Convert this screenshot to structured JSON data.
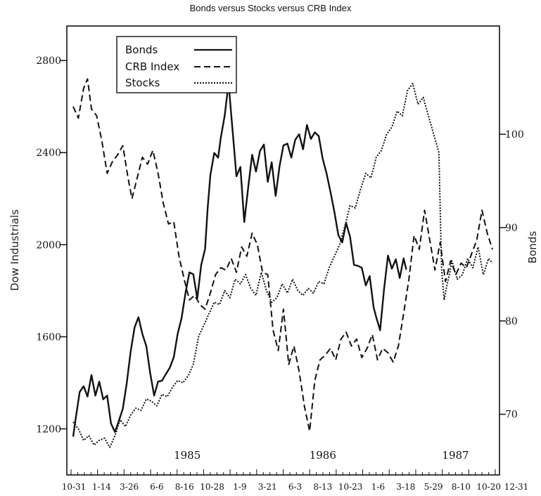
{
  "chart_data": {
    "type": "line",
    "title": "Bonds versus Stocks versus CRB Index",
    "y_left_label": "Dow Industrials",
    "y_right_label": "Bonds",
    "y_left_ticks": [
      1200,
      1600,
      2000,
      2400,
      2800
    ],
    "y_right_ticks": [
      70,
      80,
      90,
      100
    ],
    "y_left_range": [
      1000,
      2950
    ],
    "y_right_range": [
      63.5,
      111.6
    ],
    "x_ticks": [
      "10-31",
      "1-14",
      "3-26",
      "6-6",
      "8-16",
      "10-28",
      "1-9",
      "3-21",
      "6-3",
      "8-13",
      "10-23",
      "1-6",
      "3-18",
      "5-29",
      "8-10",
      "10-20",
      "12-31"
    ],
    "year_labels": [
      {
        "label": "1985",
        "x_index": 4.1
      },
      {
        "label": "1986",
        "x_index": 9.0
      },
      {
        "label": "1987",
        "x_index": 13.8
      }
    ],
    "legend": {
      "position": "top-left"
    },
    "series": [
      {
        "name": "Bonds",
        "style": "solid",
        "axis": "right",
        "points": [
          [
            0,
            67.6
          ],
          [
            0.2,
            69.6
          ],
          [
            0.5,
            72.4
          ],
          [
            0.8,
            73.0
          ],
          [
            1.1,
            71.9
          ],
          [
            1.4,
            74.2
          ],
          [
            1.7,
            72.0
          ],
          [
            2.0,
            73.5
          ],
          [
            2.3,
            71.6
          ],
          [
            2.6,
            72.0
          ],
          [
            2.9,
            69.0
          ],
          [
            3.2,
            68.1
          ],
          [
            3.5,
            69.3
          ],
          [
            3.8,
            70.6
          ],
          [
            4.1,
            73.3
          ],
          [
            4.4,
            76.7
          ],
          [
            4.7,
            79.3
          ],
          [
            5.0,
            80.4
          ],
          [
            5.3,
            78.6
          ],
          [
            5.6,
            77.3
          ],
          [
            5.9,
            74.4
          ],
          [
            6.2,
            72.0
          ],
          [
            6.5,
            73.5
          ],
          [
            6.8,
            73.6
          ],
          [
            7.1,
            74.3
          ],
          [
            7.4,
            75.0
          ],
          [
            7.7,
            76.1
          ],
          [
            8.0,
            78.6
          ],
          [
            8.3,
            80.3
          ],
          [
            8.6,
            83.0
          ],
          [
            8.9,
            85.2
          ],
          [
            9.2,
            85.0
          ],
          [
            9.5,
            82.4
          ],
          [
            9.8,
            86.0
          ],
          [
            10.1,
            87.7
          ],
          [
            10.3,
            92.1
          ],
          [
            10.5,
            95.6
          ],
          [
            10.8,
            98.0
          ],
          [
            11.1,
            97.5
          ],
          [
            11.3,
            99.6
          ],
          [
            11.6,
            102.0
          ],
          [
            11.9,
            105.5
          ],
          [
            12.2,
            100.5
          ],
          [
            12.5,
            95.5
          ],
          [
            12.8,
            96.5
          ],
          [
            13.1,
            90.6
          ],
          [
            13.4,
            94.3
          ],
          [
            13.7,
            97.8
          ],
          [
            14.0,
            96.0
          ],
          [
            14.3,
            98.2
          ],
          [
            14.6,
            98.9
          ],
          [
            14.9,
            94.9
          ],
          [
            15.2,
            97.0
          ],
          [
            15.5,
            93.4
          ],
          [
            15.8,
            96.6
          ],
          [
            16.1,
            98.8
          ],
          [
            16.4,
            99.0
          ],
          [
            16.7,
            97.5
          ],
          [
            17.0,
            99.4
          ],
          [
            17.3,
            100.0
          ],
          [
            17.6,
            98.4
          ],
          [
            17.9,
            101.0
          ],
          [
            18.2,
            99.5
          ],
          [
            18.5,
            100.2
          ],
          [
            18.8,
            99.8
          ],
          [
            19.1,
            97.4
          ],
          [
            19.4,
            95.8
          ],
          [
            19.7,
            93.8
          ],
          [
            20.0,
            91.7
          ],
          [
            20.3,
            89.2
          ],
          [
            20.6,
            88.4
          ],
          [
            20.9,
            90.5
          ],
          [
            21.2,
            89.0
          ],
          [
            21.5,
            86.0
          ],
          [
            21.8,
            85.9
          ],
          [
            22.1,
            85.7
          ],
          [
            22.4,
            83.8
          ],
          [
            22.7,
            84.8
          ],
          [
            23.0,
            81.5
          ],
          [
            23.2,
            80.4
          ],
          [
            23.5,
            79.0
          ],
          [
            23.8,
            83.4
          ],
          [
            24.1,
            87.0
          ],
          [
            24.4,
            85.6
          ],
          [
            24.7,
            86.6
          ],
          [
            25.0,
            84.6
          ],
          [
            25.3,
            86.7
          ],
          [
            25.5,
            85.5
          ]
        ]
      },
      {
        "name": "CRB Index",
        "style": "dashed",
        "axis": "left",
        "points": [
          [
            0,
            2600
          ],
          [
            0.4,
            2550
          ],
          [
            0.8,
            2680
          ],
          [
            1.1,
            2720
          ],
          [
            1.4,
            2590
          ],
          [
            1.8,
            2560
          ],
          [
            2.2,
            2450
          ],
          [
            2.6,
            2310
          ],
          [
            3.0,
            2360
          ],
          [
            3.4,
            2390
          ],
          [
            3.8,
            2430
          ],
          [
            4.2,
            2290
          ],
          [
            4.5,
            2200
          ],
          [
            4.9,
            2290
          ],
          [
            5.3,
            2380
          ],
          [
            5.7,
            2350
          ],
          [
            6.1,
            2410
          ],
          [
            6.5,
            2310
          ],
          [
            6.9,
            2180
          ],
          [
            7.3,
            2090
          ],
          [
            7.7,
            2100
          ],
          [
            8.1,
            1950
          ],
          [
            8.5,
            1850
          ],
          [
            8.9,
            1760
          ],
          [
            9.3,
            1780
          ],
          [
            9.7,
            1740
          ],
          [
            10.1,
            1720
          ],
          [
            10.5,
            1790
          ],
          [
            10.9,
            1870
          ],
          [
            11.3,
            1900
          ],
          [
            11.7,
            1890
          ],
          [
            12.1,
            1940
          ],
          [
            12.5,
            1880
          ],
          [
            12.9,
            1990
          ],
          [
            13.3,
            1950
          ],
          [
            13.7,
            2050
          ],
          [
            14.1,
            2000
          ],
          [
            14.5,
            1880
          ],
          [
            14.9,
            1870
          ],
          [
            15.3,
            1630
          ],
          [
            15.7,
            1540
          ],
          [
            16.1,
            1720
          ],
          [
            16.5,
            1480
          ],
          [
            16.9,
            1560
          ],
          [
            17.3,
            1450
          ],
          [
            17.7,
            1300
          ],
          [
            18.1,
            1190
          ],
          [
            18.5,
            1410
          ],
          [
            18.9,
            1500
          ],
          [
            19.3,
            1520
          ],
          [
            19.7,
            1550
          ],
          [
            20.1,
            1500
          ],
          [
            20.5,
            1590
          ],
          [
            20.9,
            1620
          ],
          [
            21.3,
            1560
          ],
          [
            21.7,
            1590
          ],
          [
            22.1,
            1510
          ],
          [
            22.5,
            1550
          ],
          [
            22.9,
            1610
          ],
          [
            23.3,
            1500
          ],
          [
            23.7,
            1550
          ],
          [
            24.1,
            1530
          ],
          [
            24.5,
            1490
          ],
          [
            24.9,
            1560
          ],
          [
            25.3,
            1700
          ],
          [
            25.7,
            1850
          ],
          [
            26.1,
            2040
          ],
          [
            26.5,
            1980
          ],
          [
            26.9,
            2150
          ],
          [
            27.3,
            2020
          ],
          [
            27.7,
            1890
          ],
          [
            28.1,
            2010
          ],
          [
            28.5,
            1840
          ],
          [
            28.9,
            1930
          ],
          [
            29.3,
            1870
          ],
          [
            29.7,
            1920
          ],
          [
            30.1,
            1900
          ],
          [
            30.5,
            1960
          ],
          [
            30.9,
            2020
          ],
          [
            31.3,
            2150
          ],
          [
            31.7,
            2050
          ],
          [
            32.1,
            1980
          ]
        ]
      },
      {
        "name": "Stocks",
        "style": "dotted",
        "axis": "left",
        "points": [
          [
            0,
            1230
          ],
          [
            0.4,
            1200
          ],
          [
            0.8,
            1150
          ],
          [
            1.2,
            1170
          ],
          [
            1.6,
            1130
          ],
          [
            2.0,
            1150
          ],
          [
            2.4,
            1160
          ],
          [
            2.8,
            1120
          ],
          [
            3.2,
            1170
          ],
          [
            3.6,
            1240
          ],
          [
            4.0,
            1210
          ],
          [
            4.4,
            1260
          ],
          [
            4.8,
            1290
          ],
          [
            5.2,
            1280
          ],
          [
            5.6,
            1330
          ],
          [
            6.0,
            1320
          ],
          [
            6.4,
            1300
          ],
          [
            6.8,
            1350
          ],
          [
            7.2,
            1340
          ],
          [
            7.6,
            1380
          ],
          [
            8.0,
            1410
          ],
          [
            8.4,
            1400
          ],
          [
            8.8,
            1430
          ],
          [
            9.2,
            1480
          ],
          [
            9.6,
            1600
          ],
          [
            10.0,
            1650
          ],
          [
            10.4,
            1700
          ],
          [
            10.8,
            1750
          ],
          [
            11.2,
            1740
          ],
          [
            11.6,
            1800
          ],
          [
            12.0,
            1770
          ],
          [
            12.4,
            1850
          ],
          [
            12.8,
            1830
          ],
          [
            13.2,
            1870
          ],
          [
            13.6,
            1810
          ],
          [
            14.0,
            1780
          ],
          [
            14.4,
            1880
          ],
          [
            14.8,
            1800
          ],
          [
            15.2,
            1750
          ],
          [
            15.6,
            1770
          ],
          [
            16.0,
            1830
          ],
          [
            16.4,
            1790
          ],
          [
            16.8,
            1850
          ],
          [
            17.2,
            1800
          ],
          [
            17.6,
            1780
          ],
          [
            18.0,
            1810
          ],
          [
            18.4,
            1790
          ],
          [
            18.8,
            1840
          ],
          [
            19.2,
            1830
          ],
          [
            19.6,
            1900
          ],
          [
            20.0,
            1950
          ],
          [
            20.4,
            2000
          ],
          [
            20.8,
            2080
          ],
          [
            21.2,
            2170
          ],
          [
            21.6,
            2160
          ],
          [
            22.0,
            2240
          ],
          [
            22.4,
            2310
          ],
          [
            22.8,
            2290
          ],
          [
            23.2,
            2380
          ],
          [
            23.6,
            2410
          ],
          [
            24.0,
            2480
          ],
          [
            24.4,
            2510
          ],
          [
            24.8,
            2580
          ],
          [
            25.2,
            2560
          ],
          [
            25.6,
            2670
          ],
          [
            26.0,
            2700
          ],
          [
            26.4,
            2610
          ],
          [
            26.8,
            2640
          ],
          [
            27.2,
            2560
          ],
          [
            27.6,
            2480
          ],
          [
            28.0,
            2400
          ],
          [
            28.2,
            1900
          ],
          [
            28.4,
            1760
          ],
          [
            28.6,
            1820
          ],
          [
            28.8,
            1870
          ],
          [
            29.0,
            1930
          ],
          [
            29.4,
            1850
          ],
          [
            29.8,
            1870
          ],
          [
            30.2,
            1940
          ],
          [
            30.6,
            1900
          ],
          [
            31.0,
            1990
          ],
          [
            31.4,
            1870
          ],
          [
            31.8,
            1940
          ],
          [
            32.1,
            1920
          ]
        ]
      }
    ]
  }
}
